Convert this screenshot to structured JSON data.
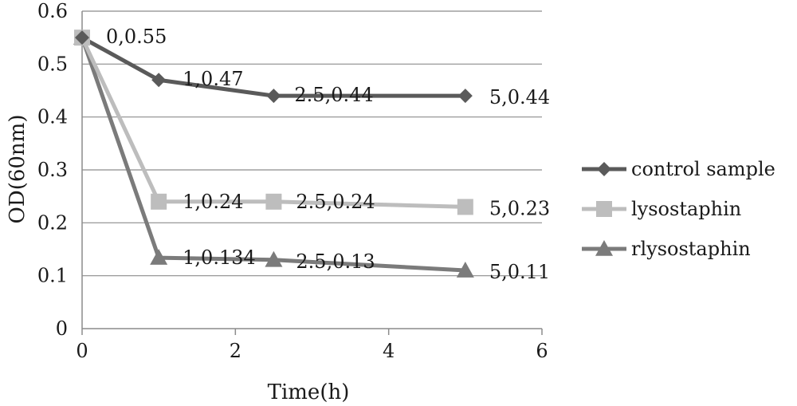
{
  "chart_data": {
    "type": "line",
    "xlabel": "Time(h)",
    "ylabel": "OD(60nm)",
    "xlim": [
      0,
      6
    ],
    "ylim": [
      0,
      0.6
    ],
    "x_ticks": [
      "0",
      "2",
      "4",
      "6"
    ],
    "y_ticks": [
      "0",
      "0.1",
      "0.2",
      "0.3",
      "0.4",
      "0.5",
      "0.6"
    ],
    "grid": "horizontal",
    "legend_position": "right",
    "series": [
      {
        "name": "control sample",
        "marker": "diamond",
        "color": "#5a5a5a",
        "x": [
          0,
          1,
          2.5,
          5
        ],
        "y": [
          0.55,
          0.47,
          0.44,
          0.44
        ],
        "labels": [
          "0,0.55",
          "1,0.47",
          "2.5,0.44",
          "5,0.44"
        ]
      },
      {
        "name": "lysostaphin",
        "marker": "square",
        "color": "#bdbdbd",
        "x": [
          0,
          1,
          2.5,
          5
        ],
        "y": [
          0.55,
          0.24,
          0.24,
          0.23
        ],
        "labels": [
          "",
          "1,0.24",
          "2.5,0.24",
          "5,0.23"
        ]
      },
      {
        "name": "rlysostaphin",
        "marker": "triangle",
        "color": "#7b7b7b",
        "x": [
          0,
          1,
          2.5,
          5
        ],
        "y": [
          0.55,
          0.134,
          0.13,
          0.11
        ],
        "labels": [
          "",
          "1,0.134",
          "2.5,0.13",
          "5,0.11"
        ]
      }
    ]
  }
}
